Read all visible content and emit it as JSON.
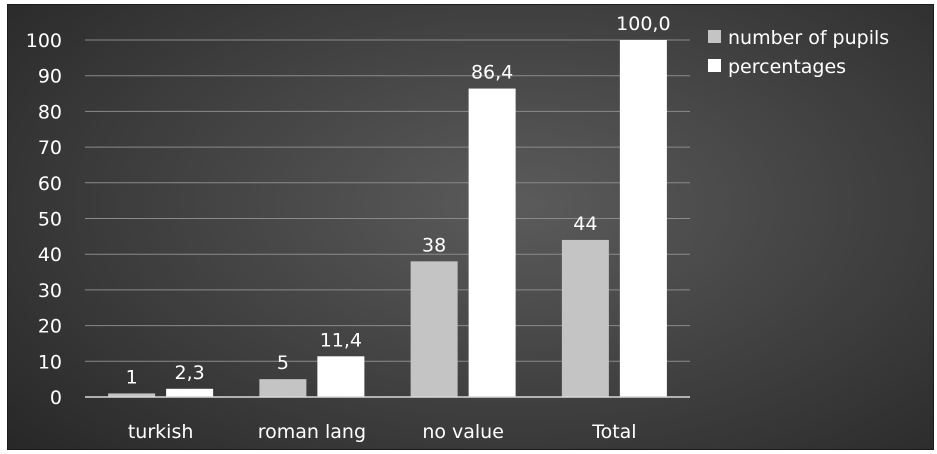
{
  "chart_data": {
    "type": "bar",
    "categories": [
      "turkish",
      "roman lang",
      "no value",
      "Total"
    ],
    "series": [
      {
        "name": "number of pupils",
        "values": [
          1,
          5,
          38,
          44
        ],
        "labels": [
          "1",
          "5",
          "38",
          "44"
        ],
        "color": "#c4c4c4"
      },
      {
        "name": "percentages",
        "values": [
          2.3,
          11.4,
          86.4,
          100.0
        ],
        "labels": [
          "2,3",
          "11,4",
          "86,4",
          "100,0"
        ],
        "color": "#ffffff"
      }
    ],
    "yticks": [
      "0",
      "10",
      "20",
      "30",
      "40",
      "50",
      "60",
      "70",
      "80",
      "90",
      "100"
    ],
    "ylim": [
      0,
      100
    ],
    "grid": true,
    "legend_position": "right-top"
  }
}
